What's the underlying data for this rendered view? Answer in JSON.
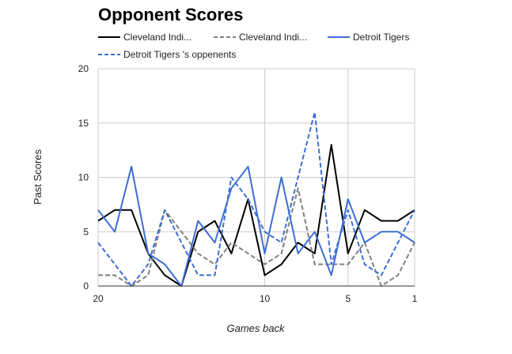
{
  "chart_data": {
    "type": "line",
    "title": "Opponent Scores",
    "xlabel": "Games back",
    "ylabel": "Past Scores",
    "x": [
      20,
      19,
      18,
      17,
      16,
      15,
      14,
      13,
      12,
      11,
      10,
      9,
      8,
      7,
      6,
      5,
      4,
      3,
      2,
      1
    ],
    "x_reversed": true,
    "xlim": [
      20,
      1
    ],
    "ylim": [
      0,
      20
    ],
    "y_ticks": [
      0,
      5,
      10,
      15,
      20
    ],
    "x_ticks": [
      20,
      10,
      5,
      1
    ],
    "grid": true,
    "legend_position": "top",
    "series": [
      {
        "name": "Cleveland Indi...",
        "color": "#000000",
        "dash": "solid",
        "values": [
          6,
          7,
          7,
          3,
          1,
          0,
          5,
          6,
          3,
          8,
          1,
          2,
          4,
          3,
          13,
          3,
          7,
          6,
          6,
          7
        ]
      },
      {
        "name": "Cleveland Indi...",
        "color": "#808080",
        "dash": "dashed",
        "values": [
          1,
          1,
          0,
          1,
          7,
          5,
          3,
          2,
          4,
          3,
          2,
          3,
          9,
          2,
          2,
          2,
          4,
          0,
          1,
          4
        ]
      },
      {
        "name": "Detroit Tigers",
        "color": "#3d6ed4",
        "dash": "solid",
        "values": [
          7,
          5,
          11,
          3,
          2,
          0,
          6,
          4,
          9,
          11,
          3,
          10,
          3,
          5,
          1,
          8,
          4,
          5,
          5,
          4
        ]
      },
      {
        "name": "Detroit Tigers 's oppenents",
        "color": "#3d6ed4",
        "dash": "dashed",
        "values": [
          4,
          2,
          0,
          2,
          7,
          4,
          1,
          1,
          10,
          8,
          5,
          4,
          10,
          16,
          2,
          7,
          2,
          1,
          4,
          7
        ]
      }
    ]
  }
}
